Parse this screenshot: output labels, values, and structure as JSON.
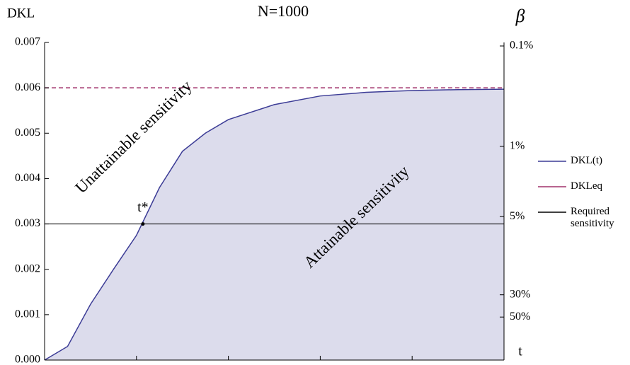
{
  "chart_data": {
    "type": "line",
    "title": "N=1000",
    "y_label": "DKL",
    "y2_label": "β",
    "x_label": "t",
    "x": [
      0,
      0.25,
      0.5,
      0.75,
      1,
      1.25,
      1.5,
      1.75,
      2,
      2.5,
      3,
      3.5,
      4,
      4.5,
      5
    ],
    "series": [
      {
        "name": "DKL(t)",
        "color": "#3c3c96",
        "fill": "#dcdcec",
        "dash": false,
        "values": [
          0,
          0.0003,
          0.00123,
          0.002,
          0.00275,
          0.0038,
          0.0046,
          0.005,
          0.0053,
          0.00563,
          0.00582,
          0.0059,
          0.00594,
          0.00596,
          0.00597
        ]
      },
      {
        "name": "DKLeq",
        "color": "#a0306a",
        "dash": true,
        "values": [
          0.006,
          0.006,
          0.006,
          0.006,
          0.006,
          0.006,
          0.006,
          0.006,
          0.006,
          0.006,
          0.006,
          0.006,
          0.006,
          0.006,
          0.006
        ]
      },
      {
        "name": "Required sensitivity",
        "color": "#000000",
        "dash": false,
        "values": [
          0.003,
          0.003,
          0.003,
          0.003,
          0.003,
          0.003,
          0.003,
          0.003,
          0.003,
          0.003,
          0.003,
          0.003,
          0.003,
          0.003,
          0.003
        ]
      }
    ],
    "point": {
      "x": 1.07,
      "y": 0.003,
      "label": "t*"
    },
    "annotations": [
      "Unattainable sensitivity",
      "Attainable sensitivity"
    ],
    "xlim": [
      0,
      5
    ],
    "xticks": [
      0,
      1,
      2,
      3,
      4,
      5
    ],
    "ylim": [
      0,
      0.007
    ],
    "yticks": [
      {
        "value": 0,
        "label": "0.000"
      },
      {
        "value": 0.001,
        "label": "0.001"
      },
      {
        "value": 0.002,
        "label": "0.002"
      },
      {
        "value": 0.003,
        "label": "0.003"
      },
      {
        "value": 0.004,
        "label": "0.004"
      },
      {
        "value": 0.005,
        "label": "0.005"
      },
      {
        "value": 0.006,
        "label": "0.006"
      },
      {
        "value": 0.007,
        "label": "0.007"
      }
    ],
    "y2lim": [
      134,
      0.0922
    ],
    "y2log": true,
    "y2ticks": [
      {
        "value": 0.1,
        "label": "0.1%"
      },
      {
        "value": 1,
        "label": "1%"
      },
      {
        "value": 5,
        "label": "5%"
      },
      {
        "value": 30,
        "label": "30%"
      },
      {
        "value": 50,
        "label": "50%"
      }
    ],
    "legend": "right",
    "grid": false
  }
}
